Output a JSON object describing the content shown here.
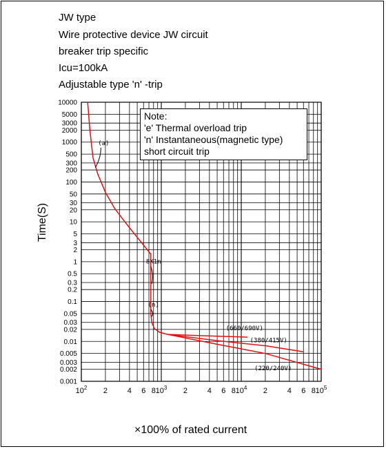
{
  "title_lines": [
    "JW  type",
    "Wire protective device JW circuit",
    "breaker trip specific",
    "Icu=100kA",
    "Adjustable type 'n' -trip"
  ],
  "note": {
    "heading": "Note:",
    "lines": [
      "'e' Thermal overload trip",
      "'n' Instantaneous(magnetic type)",
      "short circuit trip"
    ]
  },
  "chart_data": {
    "type": "line",
    "xscale": "log",
    "yscale": "log",
    "xlim": [
      100,
      100000
    ],
    "ylim": [
      0.001,
      10000
    ],
    "xlabel": "×100% of rated current",
    "ylabel": "Time(S)",
    "grid": true,
    "ytick_labels": [
      "10000",
      "5000",
      "3000",
      "2000",
      "1000",
      "500",
      "300",
      "200",
      "100",
      "50",
      "30",
      "20",
      "10",
      "5",
      "3",
      "2",
      "1",
      "0.5",
      "0.3",
      "0.2",
      "0.1",
      "0.05",
      "0.03",
      "0.02",
      "0.01",
      "0.005",
      "0.003",
      "0.002",
      "0.001"
    ],
    "ytick_values": [
      10000,
      5000,
      3000,
      2000,
      1000,
      500,
      300,
      200,
      100,
      50,
      30,
      20,
      10,
      5,
      3,
      2,
      1,
      0.5,
      0.3,
      0.2,
      0.1,
      0.05,
      0.03,
      0.02,
      0.01,
      0.005,
      0.003,
      0.002,
      0.001
    ],
    "xtick_labels": [
      {
        "base": "10",
        "sup": "2",
        "value": 100
      },
      {
        "base": "2",
        "sup": "",
        "value": 200
      },
      {
        "base": "4",
        "sup": "",
        "value": 400
      },
      {
        "base": "6",
        "sup": "",
        "value": 600
      },
      {
        "base": "8",
        "sup": "",
        "value": 800
      },
      {
        "base": "10",
        "sup": "3",
        "value": 1000
      },
      {
        "base": "2",
        "sup": "",
        "value": 2000
      },
      {
        "base": "4",
        "sup": "",
        "value": 4000
      },
      {
        "base": "6",
        "sup": "",
        "value": 6000
      },
      {
        "base": "8",
        "sup": "",
        "value": 8000
      },
      {
        "base": "10",
        "sup": "4",
        "value": 10000
      },
      {
        "base": "2",
        "sup": "",
        "value": 20000
      },
      {
        "base": "4",
        "sup": "",
        "value": 40000
      },
      {
        "base": "6",
        "sup": "",
        "value": 60000
      },
      {
        "base": "8",
        "sup": "",
        "value": 80000
      },
      {
        "base": "10",
        "sup": "5",
        "value": 100000
      }
    ],
    "series": [
      {
        "curve": "thermal",
        "color": "#e01010",
        "points": [
          [
            120,
            10000
          ],
          [
            128,
            2000
          ],
          [
            140,
            400
          ],
          [
            160,
            160
          ],
          [
            200,
            55
          ],
          [
            260,
            22
          ],
          [
            350,
            10
          ],
          [
            460,
            5
          ],
          [
            600,
            2.6
          ],
          [
            730,
            1.6
          ],
          [
            740,
            1.6
          ],
          [
            740,
            0.05
          ],
          [
            760,
            0.03
          ],
          [
            820,
            0.021
          ],
          [
            950,
            0.017
          ],
          [
            1200,
            0.015
          ]
        ]
      },
      {
        "name": "(660/690V)",
        "color": "#e01010",
        "points": [
          [
            1200,
            0.015
          ],
          [
            3000,
            0.014
          ],
          [
            10000,
            0.013
          ],
          [
            12000,
            0.0128
          ]
        ]
      },
      {
        "name": "(380/415V)",
        "color": "#e01010",
        "points": [
          [
            1200,
            0.015
          ],
          [
            5000,
            0.0105
          ],
          [
            20000,
            0.0078
          ],
          [
            60000,
            0.0055
          ]
        ]
      },
      {
        "name": "(220/240V)",
        "color": "#e01010",
        "points": [
          [
            1200,
            0.015
          ],
          [
            5000,
            0.0085
          ],
          [
            20000,
            0.005
          ],
          [
            100000,
            0.002
          ]
        ]
      }
    ],
    "annotations": [
      {
        "text": "(a)",
        "x": 190,
        "y": 850,
        "lead_to": [
          150,
          230
        ]
      },
      {
        "text": "8X1n",
        "x": 800,
        "y": 0.9,
        "lead_to": [
          760,
          0.28
        ]
      },
      {
        "text": "(n)",
        "x": 800,
        "y": 0.075,
        "lead_to": [
          760,
          0.042
        ]
      },
      {
        "text": "(660/690V)",
        "x": 11000,
        "y": 0.019
      },
      {
        "text": "(380/415V)",
        "x": 22000,
        "y": 0.0095
      },
      {
        "text": "(220/240V)",
        "x": 25000,
        "y": 0.0019
      }
    ]
  }
}
